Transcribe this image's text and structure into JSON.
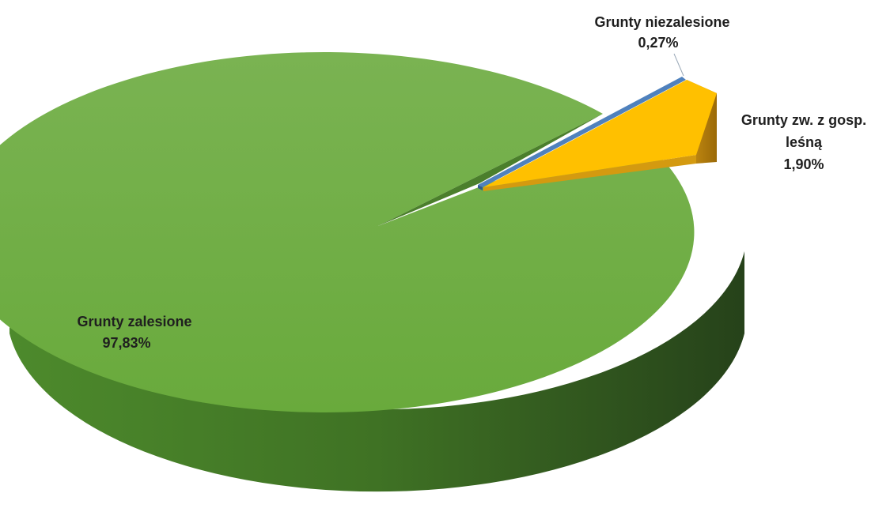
{
  "chart_data": {
    "type": "pie",
    "style": "3d-exploded",
    "title": "",
    "slices": [
      {
        "label": "Grunty zalesione",
        "value_text": "97,83%",
        "value": 97.83,
        "color": "#6cab3e"
      },
      {
        "label": "Grunty niezalesione",
        "value_text": "0,27%",
        "value": 0.27,
        "color": "#4f81bd"
      },
      {
        "label_lines": [
          "Grunty zw. z gosp.",
          "leśną"
        ],
        "value_text": "1,90%",
        "value": 1.9,
        "color": "#ffc000"
      }
    ],
    "legend": "none",
    "data_labels": "outside, label and percentage"
  }
}
